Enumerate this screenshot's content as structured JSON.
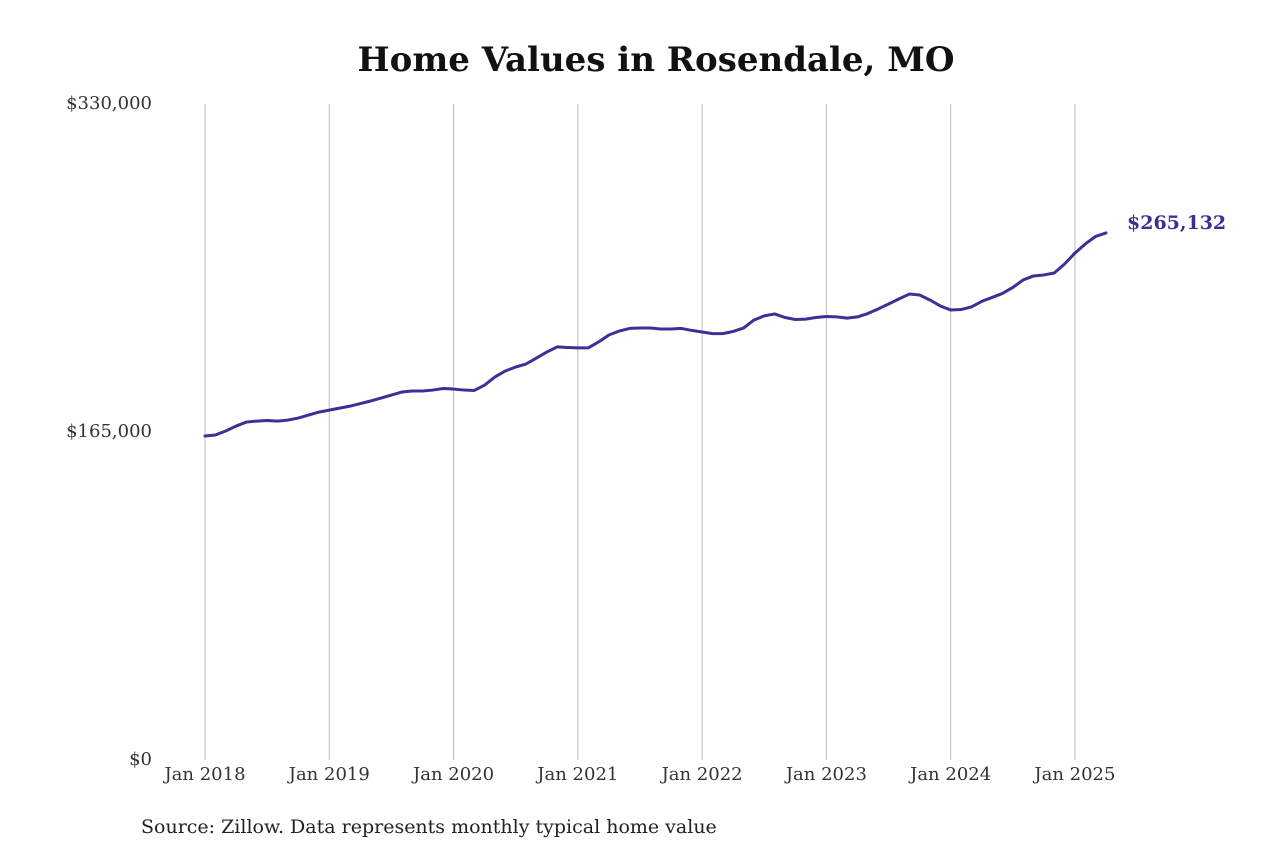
{
  "chart_data": {
    "type": "line",
    "title": "Home Values in Rosendale, MO",
    "source": "Source: Zillow. Data represents monthly typical home value",
    "color": "#3a3196",
    "x": [
      "2018-01",
      "2018-02",
      "2018-03",
      "2018-04",
      "2018-05",
      "2018-06",
      "2018-07",
      "2018-08",
      "2018-09",
      "2018-10",
      "2018-11",
      "2018-12",
      "2019-01",
      "2019-02",
      "2019-03",
      "2019-04",
      "2019-05",
      "2019-06",
      "2019-07",
      "2019-08",
      "2019-09",
      "2019-10",
      "2019-11",
      "2019-12",
      "2020-01",
      "2020-02",
      "2020-03",
      "2020-04",
      "2020-05",
      "2020-06",
      "2020-07",
      "2020-08",
      "2020-09",
      "2020-10",
      "2020-11",
      "2020-12",
      "2021-01",
      "2021-02",
      "2021-03",
      "2021-04",
      "2021-05",
      "2021-06",
      "2021-07",
      "2021-08",
      "2021-09",
      "2021-10",
      "2021-11",
      "2021-12",
      "2022-01",
      "2022-02",
      "2022-03",
      "2022-04",
      "2022-05",
      "2022-06",
      "2022-07",
      "2022-08",
      "2022-09",
      "2022-10",
      "2022-11",
      "2022-12",
      "2023-01",
      "2023-02",
      "2023-03",
      "2023-04",
      "2023-05",
      "2023-06",
      "2023-07",
      "2023-08",
      "2023-09",
      "2023-10",
      "2023-11",
      "2023-12",
      "2024-01",
      "2024-02",
      "2024-03",
      "2024-04",
      "2024-05",
      "2024-06",
      "2024-07",
      "2024-08",
      "2024-09",
      "2024-10",
      "2024-11",
      "2024-12",
      "2025-01",
      "2025-02",
      "2025-03",
      "2025-04"
    ],
    "values": [
      163000,
      163500,
      165500,
      168000,
      170000,
      170500,
      170800,
      170500,
      171000,
      172000,
      173500,
      175000,
      176000,
      177000,
      178000,
      179300,
      180600,
      182100,
      183600,
      185100,
      185600,
      185600,
      186100,
      186900,
      186600,
      186100,
      185900,
      188600,
      192700,
      195700,
      197700,
      199200,
      202200,
      205200,
      207800,
      207500,
      207300,
      207300,
      210300,
      213800,
      215800,
      217100,
      217300,
      217300,
      216800,
      216800,
      217100,
      216100,
      215300,
      214500,
      214500,
      215600,
      217300,
      221300,
      223400,
      224400,
      222600,
      221600,
      221800,
      222600,
      223100,
      222900,
      222300,
      222900,
      224600,
      226900,
      229400,
      231900,
      234400,
      233900,
      231400,
      228400,
      226400,
      226600,
      227900,
      230700,
      232700,
      234700,
      237700,
      241500,
      243500,
      244000,
      245000,
      249500,
      255000,
      259600,
      263400,
      265132
    ],
    "value_labels": [
      null,
      null,
      null,
      null,
      null,
      null,
      null,
      null,
      null,
      null,
      null,
      null,
      null,
      null,
      null,
      null,
      null,
      null,
      null,
      null,
      null,
      null,
      null,
      null,
      null,
      null,
      null,
      null,
      null,
      null,
      null,
      null,
      null,
      null,
      null,
      null,
      null,
      null,
      null,
      null,
      null,
      null,
      null,
      null,
      null,
      null,
      null,
      null,
      null,
      null,
      null,
      null,
      null,
      null,
      null,
      null,
      null,
      null,
      null,
      null,
      null,
      null,
      null,
      null,
      null,
      null,
      null,
      null,
      null,
      null,
      null,
      null,
      null,
      null,
      null,
      null,
      null,
      null,
      null,
      null,
      null,
      null,
      null,
      null,
      null,
      null,
      null,
      "$265,132"
    ],
    "xticks": [
      {
        "value": "2018-01",
        "label": "Jan 2018"
      },
      {
        "value": "2019-01",
        "label": "Jan 2019"
      },
      {
        "value": "2020-01",
        "label": "Jan 2020"
      },
      {
        "value": "2021-01",
        "label": "Jan 2021"
      },
      {
        "value": "2022-01",
        "label": "Jan 2022"
      },
      {
        "value": "2023-01",
        "label": "Jan 2023"
      },
      {
        "value": "2024-01",
        "label": "Jan 2024"
      },
      {
        "value": "2025-01",
        "label": "Jan 2025"
      }
    ],
    "ylim": [
      0,
      330000
    ],
    "yticks": [
      {
        "value": 0,
        "label": "$0"
      },
      {
        "value": 165000,
        "label": "$165,000"
      },
      {
        "value": 330000,
        "label": "$330,000"
      }
    ],
    "grid": "x"
  }
}
